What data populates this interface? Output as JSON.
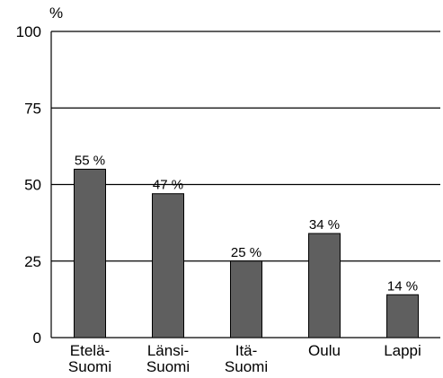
{
  "chart_data": {
    "type": "bar",
    "y_label": "%",
    "categories": [
      "Etelä-\nSuomi",
      "Länsi-\nSuomi",
      "Itä-\nSuomi",
      "Oulu",
      "Lappi"
    ],
    "values": [
      55,
      47,
      25,
      34,
      14
    ],
    "value_labels": [
      "55 %",
      "47 %",
      "25 %",
      "34 %",
      "14 %"
    ],
    "color": "#5f5f5f",
    "ylim": [
      0,
      100
    ],
    "yticks": [
      0,
      25,
      50,
      75,
      100
    ],
    "grid": true
  }
}
